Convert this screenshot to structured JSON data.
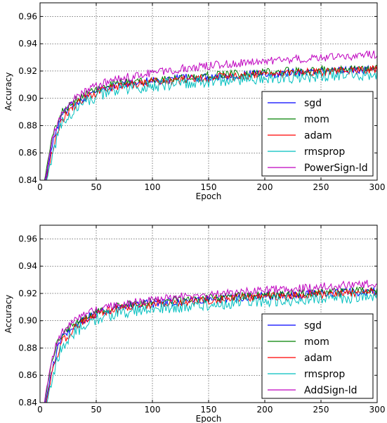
{
  "chart_data": [
    {
      "type": "line",
      "xlabel": "Epoch",
      "ylabel": "Accuracy",
      "xlim": [
        0,
        300
      ],
      "ylim": [
        0.84,
        0.97
      ],
      "xticks": [
        "0",
        "50",
        "100",
        "150",
        "200",
        "250",
        "300"
      ],
      "yticks": [
        "0.84",
        "0.86",
        "0.88",
        "0.90",
        "0.92",
        "0.94",
        "0.96"
      ],
      "grid": true,
      "legend_position": "lower-right",
      "x": [
        0,
        5,
        10,
        15,
        20,
        30,
        40,
        50,
        60,
        70,
        80,
        90,
        100,
        110,
        120,
        130,
        140,
        150,
        160,
        170,
        180,
        190,
        200,
        210,
        220,
        230,
        240,
        250,
        260,
        270,
        280,
        290,
        300
      ],
      "series": [
        {
          "name": "sgd",
          "color": "#0000ff",
          "values": [
            0.82,
            0.84,
            0.862,
            0.878,
            0.888,
            0.896,
            0.901,
            0.905,
            0.908,
            0.91,
            0.911,
            0.912,
            0.913,
            0.913,
            0.914,
            0.915,
            0.915,
            0.916,
            0.916,
            0.917,
            0.917,
            0.918,
            0.918,
            0.918,
            0.919,
            0.919,
            0.92,
            0.92,
            0.92,
            0.921,
            0.921,
            0.921,
            0.922
          ]
        },
        {
          "name": "mom",
          "color": "#008000",
          "values": [
            0.82,
            0.845,
            0.868,
            0.882,
            0.89,
            0.898,
            0.903,
            0.906,
            0.909,
            0.911,
            0.912,
            0.913,
            0.914,
            0.914,
            0.915,
            0.915,
            0.916,
            0.917,
            0.917,
            0.918,
            0.918,
            0.918,
            0.919,
            0.919,
            0.92,
            0.92,
            0.92,
            0.921,
            0.921,
            0.921,
            0.922,
            0.922,
            0.922
          ]
        },
        {
          "name": "adam",
          "color": "#ff0000",
          "values": [
            0.82,
            0.838,
            0.858,
            0.874,
            0.885,
            0.894,
            0.9,
            0.904,
            0.907,
            0.909,
            0.91,
            0.911,
            0.912,
            0.913,
            0.913,
            0.914,
            0.915,
            0.915,
            0.916,
            0.916,
            0.917,
            0.917,
            0.918,
            0.918,
            0.918,
            0.919,
            0.919,
            0.919,
            0.92,
            0.92,
            0.92,
            0.921,
            0.921
          ]
        },
        {
          "name": "rmsprop",
          "color": "#00bfbf",
          "values": [
            0.82,
            0.836,
            0.855,
            0.871,
            0.882,
            0.891,
            0.897,
            0.901,
            0.904,
            0.906,
            0.907,
            0.908,
            0.909,
            0.91,
            0.91,
            0.911,
            0.912,
            0.912,
            0.913,
            0.913,
            0.914,
            0.914,
            0.914,
            0.915,
            0.915,
            0.916,
            0.916,
            0.916,
            0.917,
            0.917,
            0.917,
            0.918,
            0.918
          ]
        },
        {
          "name": "PowerSign-ld",
          "color": "#bf00bf",
          "values": [
            0.82,
            0.842,
            0.866,
            0.881,
            0.89,
            0.899,
            0.905,
            0.909,
            0.912,
            0.914,
            0.916,
            0.917,
            0.919,
            0.92,
            0.921,
            0.922,
            0.923,
            0.924,
            0.925,
            0.925,
            0.926,
            0.927,
            0.927,
            0.928,
            0.928,
            0.929,
            0.929,
            0.93,
            0.93,
            0.931,
            0.931,
            0.932,
            0.932
          ]
        }
      ]
    },
    {
      "type": "line",
      "xlabel": "Epoch",
      "ylabel": "Accuracy",
      "xlim": [
        0,
        300
      ],
      "ylim": [
        0.84,
        0.97
      ],
      "xticks": [
        "0",
        "50",
        "100",
        "150",
        "200",
        "250",
        "300"
      ],
      "yticks": [
        "0.84",
        "0.86",
        "0.88",
        "0.90",
        "0.92",
        "0.94",
        "0.96"
      ],
      "grid": true,
      "legend_position": "lower-right",
      "x": [
        0,
        5,
        10,
        15,
        20,
        30,
        40,
        50,
        60,
        70,
        80,
        90,
        100,
        110,
        120,
        130,
        140,
        150,
        160,
        170,
        180,
        190,
        200,
        210,
        220,
        230,
        240,
        250,
        260,
        270,
        280,
        290,
        300
      ],
      "series": [
        {
          "name": "sgd",
          "color": "#0000ff",
          "values": [
            0.82,
            0.84,
            0.862,
            0.878,
            0.888,
            0.896,
            0.901,
            0.905,
            0.908,
            0.91,
            0.911,
            0.912,
            0.913,
            0.913,
            0.914,
            0.915,
            0.915,
            0.916,
            0.916,
            0.917,
            0.917,
            0.918,
            0.918,
            0.918,
            0.919,
            0.919,
            0.92,
            0.92,
            0.92,
            0.921,
            0.921,
            0.921,
            0.922
          ]
        },
        {
          "name": "mom",
          "color": "#008000",
          "values": [
            0.82,
            0.845,
            0.868,
            0.882,
            0.89,
            0.898,
            0.903,
            0.906,
            0.909,
            0.911,
            0.912,
            0.913,
            0.914,
            0.914,
            0.915,
            0.915,
            0.916,
            0.917,
            0.917,
            0.918,
            0.918,
            0.918,
            0.919,
            0.919,
            0.92,
            0.92,
            0.92,
            0.921,
            0.921,
            0.921,
            0.922,
            0.922,
            0.922
          ]
        },
        {
          "name": "adam",
          "color": "#ff0000",
          "values": [
            0.82,
            0.838,
            0.858,
            0.874,
            0.885,
            0.894,
            0.9,
            0.904,
            0.907,
            0.909,
            0.91,
            0.911,
            0.912,
            0.913,
            0.913,
            0.914,
            0.915,
            0.915,
            0.916,
            0.916,
            0.917,
            0.917,
            0.918,
            0.918,
            0.918,
            0.919,
            0.919,
            0.919,
            0.92,
            0.92,
            0.92,
            0.921,
            0.921
          ]
        },
        {
          "name": "rmsprop",
          "color": "#00bfbf",
          "values": [
            0.82,
            0.836,
            0.855,
            0.871,
            0.882,
            0.891,
            0.897,
            0.901,
            0.904,
            0.906,
            0.907,
            0.908,
            0.909,
            0.91,
            0.91,
            0.911,
            0.912,
            0.912,
            0.913,
            0.913,
            0.914,
            0.914,
            0.914,
            0.915,
            0.915,
            0.916,
            0.916,
            0.916,
            0.917,
            0.917,
            0.917,
            0.918,
            0.918
          ]
        },
        {
          "name": "AddSign-ld",
          "color": "#bf00bf",
          "values": [
            0.82,
            0.846,
            0.87,
            0.884,
            0.892,
            0.9,
            0.905,
            0.908,
            0.91,
            0.912,
            0.913,
            0.914,
            0.915,
            0.916,
            0.917,
            0.918,
            0.918,
            0.919,
            0.92,
            0.92,
            0.921,
            0.922,
            0.922,
            0.923,
            0.923,
            0.924,
            0.924,
            0.925,
            0.925,
            0.926,
            0.926,
            0.927,
            0.927
          ]
        }
      ]
    }
  ]
}
